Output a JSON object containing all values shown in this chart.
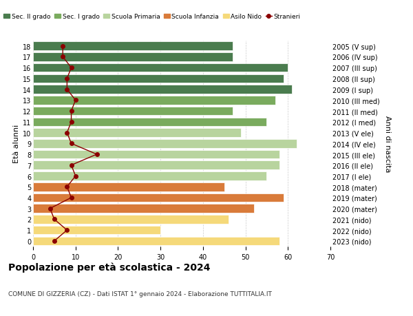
{
  "ages": [
    18,
    17,
    16,
    15,
    14,
    13,
    12,
    11,
    10,
    9,
    8,
    7,
    6,
    5,
    4,
    3,
    2,
    1,
    0
  ],
  "anni": [
    "2005 (V sup)",
    "2006 (IV sup)",
    "2007 (III sup)",
    "2008 (II sup)",
    "2009 (I sup)",
    "2010 (III med)",
    "2011 (II med)",
    "2012 (I med)",
    "2013 (V ele)",
    "2014 (IV ele)",
    "2015 (III ele)",
    "2016 (II ele)",
    "2017 (I ele)",
    "2018 (mater)",
    "2019 (mater)",
    "2020 (mater)",
    "2021 (nido)",
    "2022 (nido)",
    "2023 (nido)"
  ],
  "bar_values": [
    47,
    47,
    60,
    59,
    61,
    57,
    47,
    55,
    49,
    62,
    58,
    58,
    55,
    45,
    59,
    52,
    46,
    30,
    58
  ],
  "bar_colors": [
    "#4a7c4e",
    "#4a7c4e",
    "#4a7c4e",
    "#4a7c4e",
    "#4a7c4e",
    "#7aab5e",
    "#7aab5e",
    "#7aab5e",
    "#b8d49e",
    "#b8d49e",
    "#b8d49e",
    "#b8d49e",
    "#b8d49e",
    "#d97b3a",
    "#d97b3a",
    "#d97b3a",
    "#f5d97a",
    "#f5d97a",
    "#f5d97a"
  ],
  "stranieri": [
    7,
    7,
    9,
    8,
    8,
    10,
    9,
    9,
    8,
    9,
    15,
    9,
    10,
    8,
    9,
    4,
    5,
    8,
    5
  ],
  "stranieri_color": "#8b0000",
  "legend_labels": [
    "Sec. II grado",
    "Sec. I grado",
    "Scuola Primaria",
    "Scuola Infanzia",
    "Asilo Nido",
    "Stranieri"
  ],
  "legend_colors": [
    "#4a7c4e",
    "#7aab5e",
    "#b8d49e",
    "#d97b3a",
    "#f5d97a",
    "#8b0000"
  ],
  "ylabel_left": "Età alunni",
  "ylabel_right": "Anni di nascita",
  "title": "Popolazione per età scolastica - 2024",
  "subtitle": "COMUNE DI GIZZERIA (CZ) - Dati ISTAT 1° gennaio 2024 - Elaborazione TUTTITALIA.IT",
  "xlim": [
    0,
    70
  ],
  "background_color": "#ffffff",
  "grid_color": "#cccccc",
  "bar_height": 0.8
}
